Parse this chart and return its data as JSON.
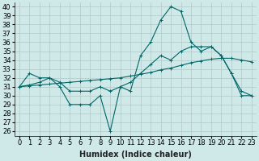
{
  "xlabel": "Humidex (Indice chaleur)",
  "background_color": "#cfe8e8",
  "grid_color": "#b0c8c8",
  "line_color": "#006666",
  "xlim": [
    -0.5,
    23.5
  ],
  "ylim": [
    25.5,
    40.5
  ],
  "xticks": [
    0,
    1,
    2,
    3,
    4,
    5,
    6,
    7,
    8,
    9,
    10,
    11,
    12,
    13,
    14,
    15,
    16,
    17,
    18,
    19,
    20,
    21,
    22,
    23
  ],
  "yticks": [
    26,
    27,
    28,
    29,
    30,
    31,
    32,
    33,
    34,
    35,
    36,
    37,
    38,
    39,
    40
  ],
  "series1_x": [
    0,
    1,
    2,
    3,
    4,
    5,
    6,
    7,
    8,
    9,
    10,
    11,
    12,
    13,
    14,
    15,
    16,
    17,
    18,
    19,
    20,
    21,
    22,
    23
  ],
  "series1_y": [
    31,
    32.5,
    32,
    32,
    31,
    29,
    29,
    29,
    30,
    26,
    31,
    30.5,
    34.5,
    36,
    38.5,
    40,
    39.5,
    36,
    35,
    35.5,
    34.5,
    32.5,
    30,
    30
  ],
  "series2_x": [
    0,
    1,
    2,
    3,
    4,
    5,
    6,
    7,
    8,
    9,
    10,
    11,
    12,
    13,
    14,
    15,
    16,
    17,
    18,
    19,
    20,
    21,
    22,
    23
  ],
  "series2_y": [
    31,
    31.1,
    31.2,
    31.3,
    31.4,
    31.5,
    31.6,
    31.7,
    31.8,
    31.9,
    32.0,
    32.2,
    32.4,
    32.6,
    32.9,
    33.1,
    33.4,
    33.7,
    33.9,
    34.1,
    34.2,
    34.2,
    34.0,
    33.8
  ],
  "series3_x": [
    0,
    1,
    2,
    3,
    4,
    5,
    6,
    7,
    8,
    9,
    10,
    11,
    12,
    13,
    14,
    15,
    16,
    17,
    18,
    19,
    20,
    21,
    22,
    23
  ],
  "series3_y": [
    31,
    31.2,
    31.5,
    32,
    31.5,
    30.5,
    30.5,
    30.5,
    31,
    30.5,
    31,
    31.5,
    32.5,
    33.5,
    34.5,
    34,
    35,
    35.5,
    35.5,
    35.5,
    34.5,
    32.5,
    30.5,
    30
  ],
  "xlabel_fontsize": 7,
  "tick_fontsize": 6,
  "linewidth": 0.8,
  "markersize": 3
}
